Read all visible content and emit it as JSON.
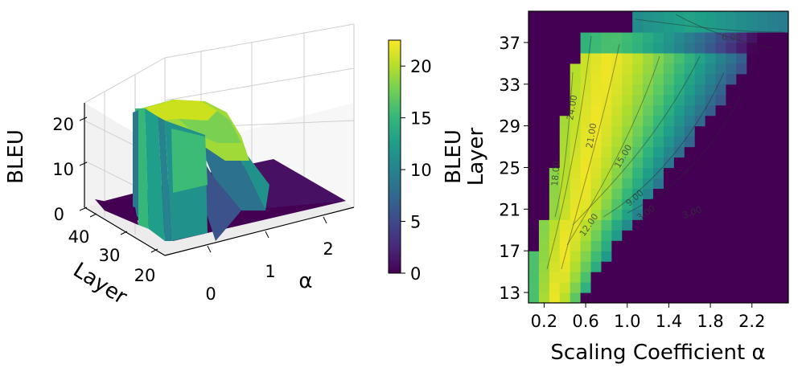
{
  "colors": {
    "colormap": "viridis",
    "viridis_stops": [
      "#440154",
      "#482878",
      "#3e4989",
      "#31688e",
      "#26828e",
      "#1f9e89",
      "#35b779",
      "#6ece58",
      "#b5de2b",
      "#fde725"
    ]
  },
  "chart_data": [
    {
      "type": "surface3d",
      "xlabel": "α",
      "ylabel": "Layer",
      "zlabel": "BLEU",
      "x_ticks": [
        "0",
        "1",
        "2"
      ],
      "y_ticks": [
        "40",
        "30",
        "20"
      ],
      "z_ticks": [
        "0",
        "10",
        "20"
      ],
      "xlim": [
        0,
        2.6
      ],
      "ylim": [
        12,
        40
      ],
      "zlim": [
        0,
        22
      ],
      "colorbar": {
        "label": "BLEU",
        "ticks": [
          "0",
          "5",
          "10",
          "15",
          "20"
        ],
        "range": [
          0,
          22.5
        ]
      }
    },
    {
      "type": "heatmap",
      "xlabel": "Scaling Coefficient α",
      "ylabel": "Layer",
      "x_ticks": [
        "0.2",
        "0.6",
        "1.0",
        "1.4",
        "1.8",
        "2.2"
      ],
      "y_ticks": [
        "13",
        "17",
        "21",
        "25",
        "29",
        "33",
        "37"
      ],
      "xlim": [
        0.05,
        2.55
      ],
      "ylim": [
        12,
        40
      ],
      "contour_levels": [
        "3.00",
        "6.00",
        "9.00",
        "12.00",
        "15.00",
        "18.00",
        "21.00",
        "24.00"
      ]
    }
  ]
}
